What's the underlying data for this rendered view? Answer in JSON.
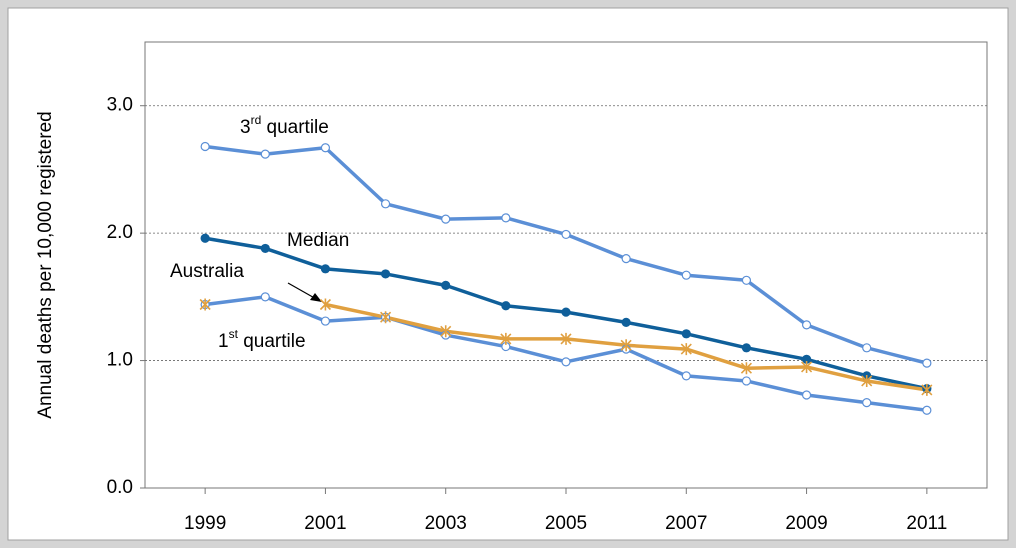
{
  "chart_data": {
    "type": "line",
    "y_label": "Annual deaths per 10,000 registered",
    "x": [
      1999,
      2000,
      2001,
      2002,
      2003,
      2004,
      2005,
      2006,
      2007,
      2008,
      2009,
      2010,
      2011
    ],
    "xlim": [
      1998,
      2012
    ],
    "xticks": [
      1999,
      2001,
      2003,
      2005,
      2007,
      2009,
      2011
    ],
    "ylim": [
      0,
      3.5
    ],
    "yticks": [
      {
        "value": 0,
        "label": "0.0"
      },
      {
        "value": 1,
        "label": "1.0"
      },
      {
        "value": 2,
        "label": "2.0"
      },
      {
        "value": 3,
        "label": "3.0"
      }
    ],
    "grid": true,
    "series": [
      {
        "name": "3rd quartile",
        "color": "#5b8fd6",
        "marker": "open-circle",
        "values": [
          2.68,
          2.62,
          2.67,
          2.23,
          2.11,
          2.12,
          1.99,
          1.8,
          1.67,
          1.63,
          1.28,
          1.1,
          0.98
        ]
      },
      {
        "name": "Median",
        "color": "#0f5f9a",
        "marker": "filled-circle",
        "values": [
          1.96,
          1.88,
          1.72,
          1.68,
          1.59,
          1.43,
          1.38,
          1.3,
          1.21,
          1.1,
          1.01,
          0.88,
          0.78
        ]
      },
      {
        "name": "1st quartile",
        "color": "#5b8fd6",
        "marker": "open-circle",
        "values": [
          1.44,
          1.5,
          1.31,
          1.34,
          1.2,
          1.11,
          0.99,
          1.09,
          0.88,
          0.84,
          0.73,
          0.67,
          0.61
        ]
      },
      {
        "name": "Australia",
        "color": "#e0a040",
        "marker": "star",
        "values": [
          1.44,
          null,
          1.44,
          1.34,
          1.23,
          1.17,
          1.17,
          1.12,
          1.09,
          0.94,
          0.95,
          0.84,
          0.77
        ]
      }
    ]
  }
}
